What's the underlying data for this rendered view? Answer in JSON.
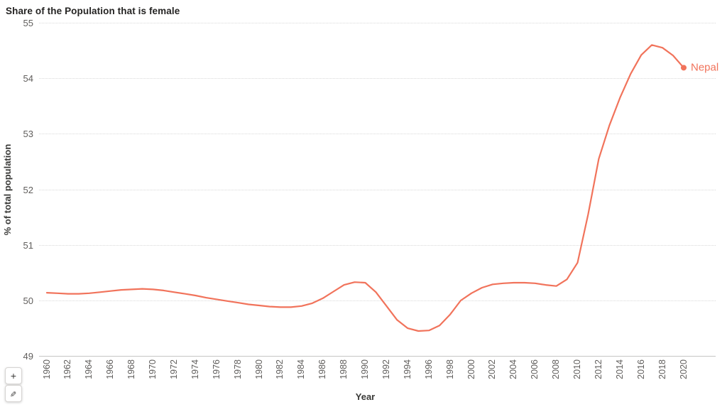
{
  "title": "Share of the Population that is female",
  "toolbar": {
    "plus_glyph": "+",
    "pencil_glyph": "✎",
    "plus_icon": "plus-icon",
    "pencil_icon": "pencil-icon"
  },
  "colors": {
    "line": "#f1735b",
    "end_label": "#f1735b",
    "grid": "#d9d9d9",
    "axis_line": "#c6c6c4",
    "tick_text": "#605e5c",
    "axis_title_text": "#3a3a38",
    "title_text": "#252423"
  },
  "chart_data": {
    "type": "line",
    "title": "Share of the Population that is female",
    "xlabel": "Year",
    "ylabel": "% of total population",
    "ylim": [
      49,
      55
    ],
    "yticks": [
      49,
      50,
      51,
      52,
      53,
      54,
      55
    ],
    "xtick_labels": [
      1960,
      1962,
      1964,
      1966,
      1968,
      1970,
      1972,
      1974,
      1976,
      1978,
      1980,
      1982,
      1984,
      1986,
      1988,
      1990,
      1992,
      1994,
      1996,
      1998,
      2000,
      2002,
      2004,
      2006,
      2008,
      2010,
      2012,
      2014,
      2016,
      2018,
      2020
    ],
    "grid": "horizontal-dotted",
    "legend": "end-of-line-label",
    "x": [
      1960,
      1961,
      1962,
      1963,
      1964,
      1965,
      1966,
      1967,
      1968,
      1969,
      1970,
      1971,
      1972,
      1973,
      1974,
      1975,
      1976,
      1977,
      1978,
      1979,
      1980,
      1981,
      1982,
      1983,
      1984,
      1985,
      1986,
      1987,
      1988,
      1989,
      1990,
      1991,
      1992,
      1993,
      1994,
      1995,
      1996,
      1997,
      1998,
      1999,
      2000,
      2001,
      2002,
      2003,
      2004,
      2005,
      2006,
      2007,
      2008,
      2009,
      2010,
      2011,
      2012,
      2013,
      2014,
      2015,
      2016,
      2017,
      2018,
      2019,
      2020
    ],
    "series": [
      {
        "name": "Nepal",
        "values": [
          50.14,
          50.13,
          50.12,
          50.12,
          50.13,
          50.15,
          50.17,
          50.19,
          50.2,
          50.21,
          50.2,
          50.18,
          50.15,
          50.12,
          50.09,
          50.05,
          50.02,
          49.99,
          49.96,
          49.93,
          49.91,
          49.89,
          49.88,
          49.88,
          49.9,
          49.95,
          50.04,
          50.16,
          50.28,
          50.33,
          50.32,
          50.15,
          49.9,
          49.65,
          49.5,
          49.45,
          49.46,
          49.55,
          49.75,
          50.0,
          50.13,
          50.23,
          50.29,
          50.31,
          50.32,
          50.32,
          50.31,
          50.28,
          50.26,
          50.38,
          50.68,
          51.55,
          52.55,
          53.15,
          53.65,
          54.08,
          54.42,
          54.6,
          54.55,
          54.41,
          54.19
        ]
      }
    ]
  }
}
